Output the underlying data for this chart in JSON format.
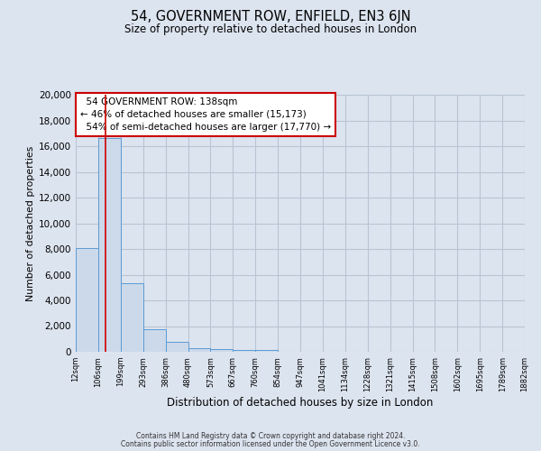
{
  "title": "54, GOVERNMENT ROW, ENFIELD, EN3 6JN",
  "subtitle": "Size of property relative to detached houses in London",
  "xlabel": "Distribution of detached houses by size in London",
  "ylabel": "Number of detached properties",
  "bin_edge_labels": [
    "12sqm",
    "106sqm",
    "199sqm",
    "293sqm",
    "386sqm",
    "480sqm",
    "573sqm",
    "667sqm",
    "760sqm",
    "854sqm",
    "947sqm",
    "1041sqm",
    "1134sqm",
    "1228sqm",
    "1321sqm",
    "1415sqm",
    "1508sqm",
    "1602sqm",
    "1695sqm",
    "1789sqm",
    "1882sqm"
  ],
  "bar_values": [
    8100,
    16600,
    5300,
    1750,
    800,
    280,
    200,
    130,
    110,
    0,
    0,
    0,
    0,
    0,
    0,
    0,
    0,
    0,
    0,
    0
  ],
  "bar_color": "#ccd9ea",
  "bar_edge_color": "#5b9bd5",
  "grid_color": "#b8c4d4",
  "background_color": "#dce4ef",
  "property_size": "138sqm",
  "property_name": "54 GOVERNMENT ROW",
  "pct_smaller": 46,
  "count_smaller": 15173,
  "pct_larger": 54,
  "count_larger": 17770,
  "annotation_box_color": "#ffffff",
  "annotation_border_color": "#cc0000",
  "ylim_max": 20000,
  "yticks": [
    0,
    2000,
    4000,
    6000,
    8000,
    10000,
    12000,
    14000,
    16000,
    18000,
    20000
  ],
  "footer1": "Contains HM Land Registry data © Crown copyright and database right 2024.",
  "footer2": "Contains public sector information licensed under the Open Government Licence v3.0."
}
